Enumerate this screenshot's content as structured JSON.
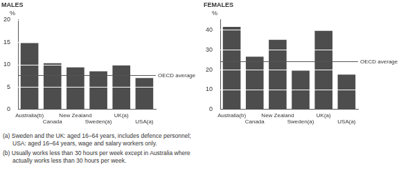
{
  "chart_data": [
    {
      "type": "bar",
      "title": "MALES",
      "y_label": "%",
      "categories": [
        "Australia(b)",
        "Canada",
        "New Zealand",
        "Sweden(a)",
        "UK(a)",
        "USA(a)"
      ],
      "values": [
        14.8,
        10.3,
        9.4,
        8.5,
        9.9,
        7.0
      ],
      "color": "#4d4d4d",
      "ylim": [
        0,
        20
      ],
      "yticks": [
        0,
        5,
        10,
        15,
        20
      ],
      "grid": true,
      "annotations": [
        {
          "text": "OECD average",
          "y": 7.7
        }
      ]
    },
    {
      "type": "bar",
      "title": "FEMALES",
      "y_label": "%",
      "categories": [
        "Australia(b)",
        "Canada",
        "New Zealand",
        "Sweden(a)",
        "UK(a)",
        "USA(a)"
      ],
      "values": [
        41.5,
        26.5,
        35.0,
        19.5,
        39.5,
        17.5
      ],
      "color": "#4d4d4d",
      "ylim": [
        0,
        45
      ],
      "yticks": [
        0,
        10,
        20,
        30,
        40
      ],
      "grid": true,
      "annotations": [
        {
          "text": "OECD average",
          "y": 24
        }
      ]
    }
  ],
  "footnotes": [
    "(a) Sweden and the UK: aged 16–64 years, includes defence personnel; USA: aged 16–64 years, wage and salary workers only.",
    "(b) Usually works less than 30 hours per week except in Australia where actually works less than 30 hours per week."
  ]
}
